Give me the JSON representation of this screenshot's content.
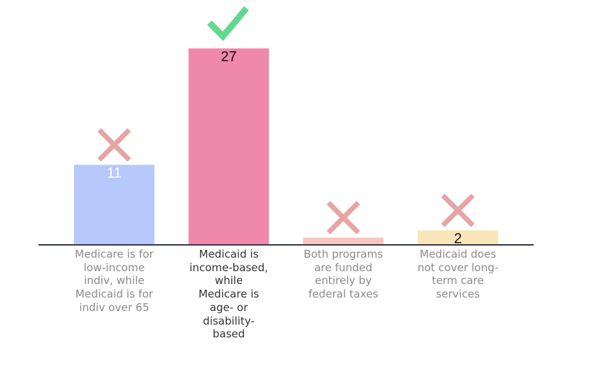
{
  "chart_data": {
    "type": "bar",
    "categories": [
      "Medicare is for low-income indiv, while Medicaid is for indiv over 65",
      "Medicaid is income-based, while Medicare is age- or disability-based",
      "Both programs are funded entirely by federal taxes",
      "Medicaid does not cover long-term care services"
    ],
    "category_lines": [
      [
        "Medicare is for",
        "low-income",
        "indiv, while",
        "Medicaid is for",
        "indiv over 65"
      ],
      [
        "Medicaid is",
        "income-based,",
        "while",
        "Medicare is",
        "age- or",
        "disability-",
        "based"
      ],
      [
        "Both programs",
        "are funded",
        "entirely by",
        "federal taxes"
      ],
      [
        "Medicaid does",
        "not cover long-",
        "term care",
        "services"
      ]
    ],
    "values": [
      11,
      27,
      1,
      2
    ],
    "value_labels": [
      "11",
      "27",
      "",
      "2"
    ],
    "correct": [
      false,
      true,
      false,
      false
    ],
    "colors": [
      "#b7c8fb",
      "#ef89ab",
      "#f8c5c1",
      "#fae6ba"
    ],
    "value_label_colors": [
      "#ffffff",
      "#111111",
      "#111111",
      "#111111"
    ],
    "mark_colors": {
      "correct": "#62d98f",
      "incorrect": "#e6a4a4"
    },
    "ylim": [
      0,
      27
    ],
    "title": "",
    "xlabel": "",
    "ylabel": "",
    "grid": false
  }
}
